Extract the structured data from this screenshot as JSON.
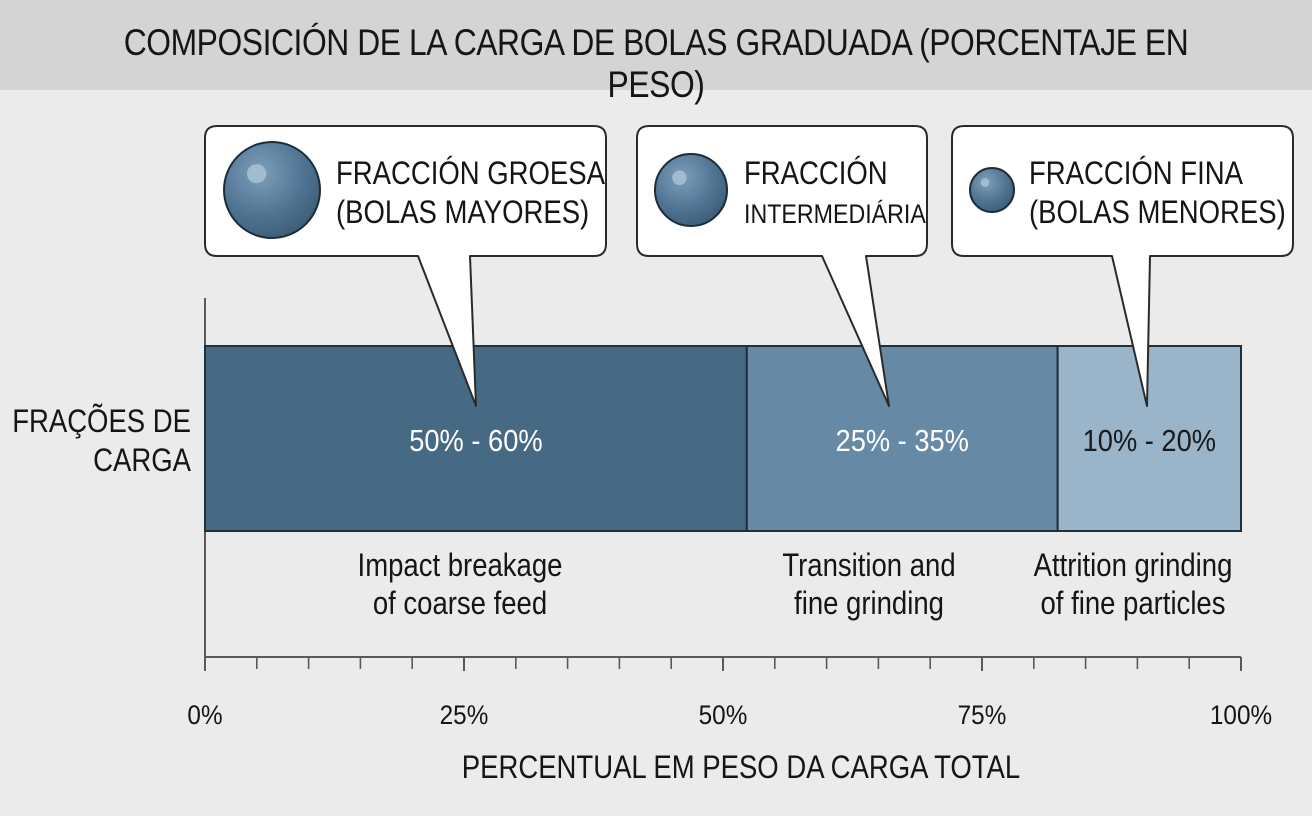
{
  "chart_data": {
    "type": "bar",
    "orientation": "horizontal",
    "stacked": true,
    "title": "COMPOSICIÓN DE LA CARGA DE BOLAS GRADUADA (PORCENTAJE EN PESO)",
    "ylabel": "FRAÇÕES DE CARGA",
    "xlabel": "PERCENTUAL EM PESO DA CARGA TOTAL",
    "xlim": [
      0,
      100
    ],
    "xticks": [
      "0%",
      "25%",
      "50%",
      "75%",
      "100%"
    ],
    "minor_tick_step": 5,
    "grid": false,
    "segments": [
      {
        "start": 0,
        "end": 52.3,
        "value_label": "50% - 60%",
        "fraction_label": [
          "FRACCIÓN GROESA",
          "(BOLAS MAYORES)"
        ],
        "description": [
          "Impact breakage",
          "of coarse feed"
        ],
        "color": "#476a84",
        "label_color": "#ffffff"
      },
      {
        "start": 52.3,
        "end": 82.3,
        "value_label": "25% - 35%",
        "fraction_label": [
          "FRACCIÓN",
          "INTERMEDIÁRIA"
        ],
        "description": [
          "Transition and",
          "fine grinding"
        ],
        "color": "#668aa6",
        "label_color": "#ffffff"
      },
      {
        "start": 82.3,
        "end": 100,
        "value_label": "10% - 20%",
        "fraction_label": [
          "FRACCIÓN FINA",
          "(BOLAS MENORES)"
        ],
        "description": [
          "Attrition grinding",
          "of fine particles"
        ],
        "color": "#9ab4ca",
        "label_color": "#1a1a1a"
      }
    ]
  }
}
